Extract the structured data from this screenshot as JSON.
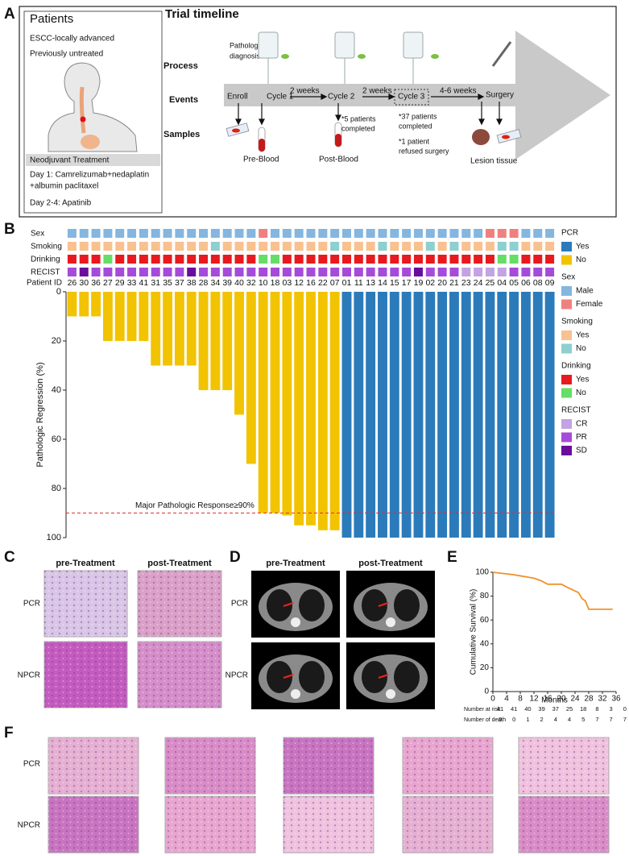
{
  "panel_labels": [
    "A",
    "B",
    "C",
    "D",
    "E",
    "F"
  ],
  "patients": {
    "title": "Patients",
    "lines": [
      "ESCC-locally advanced",
      "Previously untreated"
    ],
    "treatment": {
      "title": "Neodjuvant Treatment",
      "lines": [
        "Day 1: Camrelizumab+nedaplatin",
        "+albumin paclitaxel",
        "Day 2-4: Apatinib"
      ]
    }
  },
  "timeline": {
    "title": "Trial timeline",
    "rows": [
      "Process",
      "Events",
      "Samples"
    ],
    "process": [
      "Pathological",
      "diagnosis"
    ],
    "events": [
      "Enroll",
      "Cycle 1",
      "Cycle 2",
      "Cycle 3",
      "Surgery"
    ],
    "intervals": [
      "2 weeks",
      "2 weeks",
      "4-6 weeks"
    ],
    "notes": [
      [
        "*5 patients",
        "completed"
      ],
      [
        "*37 patients",
        "completed"
      ],
      [
        "*1 patient",
        "refused surgery"
      ]
    ],
    "samples": [
      "Pre-Blood",
      "Post-Blood",
      "Lesion tissue"
    ]
  },
  "chart_data": [
    {
      "type": "bar",
      "ylabel": "Pathologic Regression (%)",
      "id_label": "Patient ID",
      "categories": [
        "26",
        "30",
        "36",
        "27",
        "29",
        "33",
        "41",
        "31",
        "35",
        "37",
        "38",
        "28",
        "34",
        "39",
        "40",
        "32",
        "10",
        "18",
        "03",
        "12",
        "16",
        "22",
        "07",
        "01",
        "11",
        "13",
        "14",
        "15",
        "17",
        "19",
        "02",
        "20",
        "21",
        "23",
        "24",
        "25",
        "04",
        "05",
        "06",
        "08",
        "09"
      ],
      "values": [
        10,
        10,
        10,
        20,
        20,
        20,
        20,
        30,
        30,
        30,
        30,
        40,
        40,
        40,
        50,
        70,
        90,
        90,
        91,
        95,
        95,
        97,
        97,
        100,
        100,
        100,
        100,
        100,
        100,
        100,
        100,
        100,
        100,
        100,
        100,
        100,
        100,
        100,
        100,
        100,
        100
      ],
      "ylim": [
        0,
        100
      ],
      "yticks": [
        0,
        20,
        40,
        60,
        80,
        100
      ],
      "y_reversed": true,
      "threshold": {
        "value": 90,
        "label": "Major Pathologic Response≥90%",
        "color": "#e0302e"
      },
      "pcr": {
        "name": "PCR",
        "items": [
          {
            "name": "Yes",
            "color": "#2b7bba"
          },
          {
            "name": "No",
            "color": "#f2c300"
          }
        ],
        "values": [
          1,
          1,
          1,
          1,
          1,
          1,
          1,
          1,
          1,
          1,
          1,
          1,
          1,
          1,
          1,
          1,
          1,
          1,
          1,
          1,
          1,
          1,
          1,
          0,
          0,
          0,
          0,
          0,
          0,
          0,
          0,
          0,
          0,
          0,
          0,
          0,
          0,
          0,
          0,
          0,
          0
        ]
      },
      "tracks": [
        {
          "name": "Sex",
          "items": [
            {
              "name": "Male",
              "color": "#84b6e0"
            },
            {
              "name": "Female",
              "color": "#f08080"
            }
          ],
          "values": [
            0,
            0,
            0,
            0,
            0,
            0,
            0,
            0,
            0,
            0,
            0,
            0,
            0,
            0,
            0,
            0,
            1,
            0,
            0,
            0,
            0,
            0,
            0,
            0,
            0,
            0,
            0,
            0,
            0,
            0,
            0,
            0,
            0,
            0,
            0,
            1,
            1,
            1,
            0,
            0,
            0
          ]
        },
        {
          "name": "Smoking",
          "items": [
            {
              "name": "Yes",
              "color": "#f8c18f"
            },
            {
              "name": "No",
              "color": "#8ecfcf"
            }
          ],
          "values": [
            0,
            0,
            0,
            0,
            0,
            0,
            0,
            0,
            0,
            0,
            0,
            0,
            1,
            0,
            0,
            0,
            0,
            0,
            0,
            0,
            0,
            0,
            1,
            0,
            0,
            0,
            1,
            0,
            0,
            0,
            1,
            0,
            1,
            0,
            0,
            0,
            1,
            1,
            0,
            0,
            0
          ]
        },
        {
          "name": "Drinking",
          "items": [
            {
              "name": "Yes",
              "color": "#e8191f"
            },
            {
              "name": "No",
              "color": "#66dd66"
            }
          ],
          "values": [
            0,
            0,
            0,
            1,
            0,
            0,
            0,
            0,
            0,
            0,
            0,
            0,
            0,
            0,
            0,
            0,
            1,
            1,
            0,
            0,
            0,
            0,
            0,
            0,
            0,
            0,
            0,
            0,
            0,
            0,
            0,
            0,
            0,
            0,
            0,
            0,
            1,
            1,
            0,
            0,
            0
          ]
        },
        {
          "name": "RECIST",
          "items": [
            {
              "name": "CR",
              "color": "#c3a3e3"
            },
            {
              "name": "PR",
              "color": "#a64bd9"
            },
            {
              "name": "SD",
              "color": "#6a0d9a"
            }
          ],
          "values": [
            1,
            2,
            1,
            1,
            1,
            1,
            1,
            1,
            1,
            1,
            2,
            1,
            1,
            1,
            1,
            1,
            1,
            1,
            1,
            1,
            1,
            1,
            1,
            1,
            1,
            1,
            1,
            1,
            1,
            2,
            1,
            1,
            1,
            0,
            0,
            0,
            0,
            1,
            1,
            1,
            1
          ]
        }
      ]
    },
    {
      "type": "line",
      "ylabel": "Cumulative Survival (%)",
      "xlabel": "Months",
      "color": "#f0922b",
      "x": [
        0,
        3,
        6,
        8,
        10,
        12,
        14,
        16,
        20,
        22,
        25,
        26,
        27,
        28,
        35
      ],
      "values": [
        100,
        99,
        98,
        97,
        96,
        95,
        93,
        90,
        90,
        87,
        83,
        78,
        76,
        69,
        69
      ],
      "xlim": [
        0,
        36
      ],
      "xticks": [
        0,
        4,
        8,
        12,
        16,
        20,
        24,
        28,
        32,
        36
      ],
      "ylim": [
        0,
        100
      ],
      "yticks": [
        0,
        20,
        40,
        60,
        80,
        100
      ],
      "risk_table": [
        {
          "label": "Number at risk",
          "values": [
            41,
            41,
            40,
            39,
            37,
            25,
            18,
            8,
            3,
            0
          ]
        },
        {
          "label": "Number of death",
          "values": [
            0,
            0,
            1,
            2,
            4,
            4,
            5,
            7,
            7,
            7
          ]
        }
      ]
    }
  ],
  "panel_c": {
    "columns": [
      "pre-Treatment",
      "post-Treatment"
    ],
    "rows": [
      "PCR",
      "NPCR"
    ]
  },
  "panel_d": {
    "columns": [
      "pre-Treatment",
      "post-Treatment"
    ],
    "rows": [
      "PCR",
      "NPCR"
    ]
  },
  "panel_f": {
    "rows": [
      "PCR",
      "NPCR"
    ]
  }
}
